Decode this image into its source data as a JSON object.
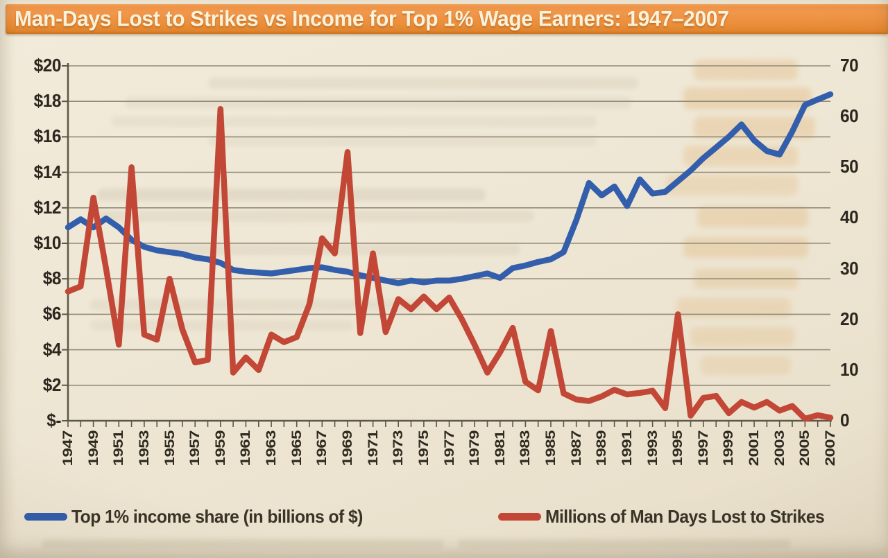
{
  "header": {
    "title": "Man-Days Lost to Strikes vs Income for Top 1% Wage Earners: 1947–2007"
  },
  "chart_data": {
    "type": "line",
    "title": "Man-Days Lost to Strikes vs Income for Top 1% Wage Earners: 1947–2007",
    "grid": true,
    "legend_position": "bottom",
    "years": [
      1947,
      1948,
      1949,
      1950,
      1951,
      1952,
      1953,
      1954,
      1955,
      1956,
      1957,
      1958,
      1959,
      1960,
      1961,
      1962,
      1963,
      1964,
      1965,
      1966,
      1967,
      1968,
      1969,
      1970,
      1971,
      1972,
      1973,
      1974,
      1975,
      1976,
      1977,
      1978,
      1979,
      1980,
      1981,
      1982,
      1983,
      1984,
      1985,
      1986,
      1987,
      1988,
      1989,
      1990,
      1991,
      1992,
      1993,
      1994,
      1995,
      1996,
      1997,
      1998,
      1999,
      2000,
      2001,
      2002,
      2003,
      2004,
      2005,
      2006,
      2007
    ],
    "x_tick_labels": [
      "1947",
      "1949",
      "1951",
      "1953",
      "1955",
      "1957",
      "1959",
      "1961",
      "1963",
      "1965",
      "1967",
      "1969",
      "1971",
      "1973",
      "1975",
      "1977",
      "1979",
      "1981",
      "1983",
      "1985",
      "1987",
      "1989",
      "1991",
      "1993",
      "1995",
      "1997",
      "1999",
      "2001",
      "2003",
      "2005",
      "2007"
    ],
    "left_axis": {
      "min": 0,
      "max": 20,
      "labels": [
        "$20",
        "$18",
        "$16",
        "$14",
        "$12",
        "$10",
        "$8",
        "$6",
        "$4",
        "$2",
        "$-"
      ]
    },
    "right_axis": {
      "min": 0,
      "max": 70,
      "labels": [
        "70",
        "60",
        "50",
        "40",
        "30",
        "20",
        "10",
        "0"
      ]
    },
    "series": [
      {
        "name": "Top 1% income share (in billions of $)",
        "axis": "left",
        "color": "#2b57a8",
        "values": [
          10.9,
          11.35,
          10.9,
          11.4,
          10.9,
          10.2,
          9.8,
          9.6,
          9.5,
          9.4,
          9.2,
          9.1,
          8.9,
          8.5,
          8.4,
          8.35,
          8.3,
          8.4,
          8.5,
          8.6,
          8.65,
          8.5,
          8.4,
          8.2,
          8.05,
          7.9,
          7.75,
          7.9,
          7.8,
          7.9,
          7.9,
          8.0,
          8.15,
          8.3,
          8.05,
          8.6,
          8.75,
          8.95,
          9.1,
          9.5,
          11.3,
          13.4,
          12.7,
          13.2,
          12.1,
          13.6,
          12.8,
          12.9,
          13.5,
          14.1,
          14.8,
          15.4,
          16.0,
          16.7,
          15.8,
          15.2,
          15.0,
          16.3,
          17.8,
          18.1,
          18.4
        ]
      },
      {
        "name": "Millions of Man Days Lost to Strikes",
        "axis": "right",
        "color": "#c0402e",
        "values": [
          25.5,
          26.5,
          44,
          30,
          15,
          50,
          17,
          16,
          28,
          18,
          11.5,
          12,
          61.5,
          9.5,
          12.5,
          10,
          17,
          15.5,
          16.5,
          23,
          36,
          33,
          53,
          17.3,
          33,
          17.5,
          24,
          22,
          24.5,
          22,
          24.3,
          20,
          15,
          9.5,
          13.5,
          18.3,
          7.7,
          6,
          17.7,
          5.4,
          4.2,
          3.9,
          4.8,
          6.1,
          5.2,
          5.5,
          5.9,
          2.5,
          21,
          1,
          4.5,
          4.9,
          1.5,
          3.7,
          2.6,
          3.7,
          2.0,
          2.9,
          0.4,
          1.1,
          0.6
        ]
      }
    ]
  },
  "colors": {
    "header_bg": "#ea8a33",
    "header_text": "#faf2da",
    "page_bg": "#eee6d3",
    "gridline": "#8f8673",
    "axis": "#55503f",
    "income_line": "#2b57a8",
    "strikes_line": "#c0402e"
  }
}
